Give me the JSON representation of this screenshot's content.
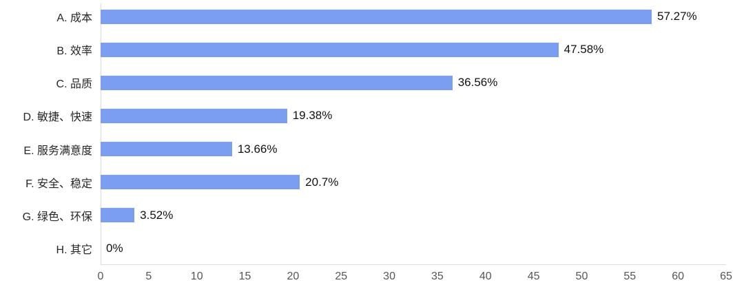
{
  "chart_data": {
    "type": "bar",
    "orientation": "horizontal",
    "title": "",
    "categories": [
      "A. 成本",
      "B. 效率",
      "C. 品质",
      "D. 敏捷、快速",
      "E. 服务满意度",
      "F. 安全、稳定",
      "G. 绿色、环保",
      "H. 其它"
    ],
    "values": [
      57.27,
      47.58,
      36.56,
      19.38,
      13.66,
      20.7,
      3.52,
      0
    ],
    "value_labels": [
      "57.27%",
      "47.58%",
      "36.56%",
      "19.38%",
      "13.66%",
      "20.7%",
      "3.52%",
      "0%"
    ],
    "xlabel": "",
    "ylabel": "",
    "xlim": [
      0,
      65
    ],
    "x_ticks": [
      0,
      5,
      10,
      15,
      20,
      25,
      30,
      35,
      40,
      45,
      50,
      55,
      60,
      65
    ],
    "grid": false,
    "legend": false,
    "bar_color": "#7b9df2",
    "axis_line_color": "#d9dde3",
    "category_label_color": "#262626",
    "value_label_color": "#111111",
    "tick_label_color": "#555555",
    "background_color": "#ffffff"
  }
}
